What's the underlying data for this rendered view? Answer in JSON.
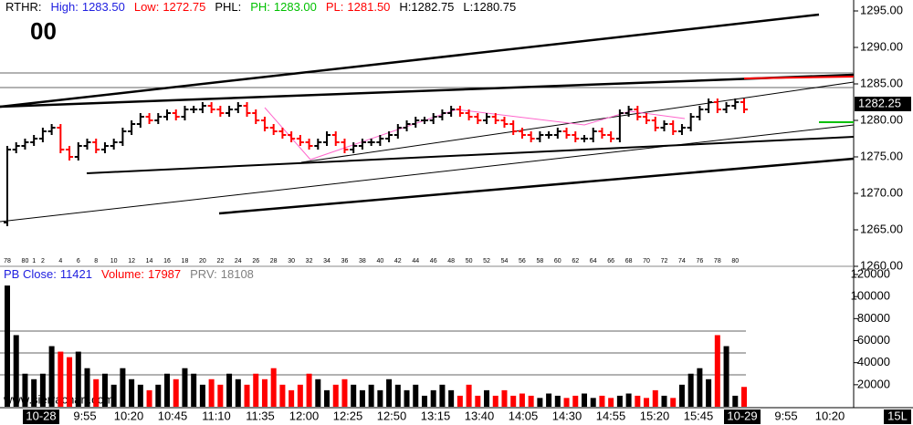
{
  "header": {
    "items": [
      {
        "text": "RTHR:",
        "color": "#000000"
      },
      {
        "text": "High:",
        "color": "#2020e0"
      },
      {
        "text": "1283.50",
        "color": "#2020e0"
      },
      {
        "text": "Low:",
        "color": "#ff0000"
      },
      {
        "text": "1272.75",
        "color": "#ff0000"
      },
      {
        "text": "PHL:",
        "color": "#000000"
      },
      {
        "text": "PH:",
        "color": "#00c000"
      },
      {
        "text": "1283.00",
        "color": "#00c000"
      },
      {
        "text": "PL:",
        "color": "#ff0000"
      },
      {
        "text": "1281.50",
        "color": "#ff0000"
      },
      {
        "text": "H:1282.75",
        "color": "#000000"
      },
      {
        "text": "L:1280.75",
        "color": "#000000"
      }
    ],
    "big_label": "00"
  },
  "volume_header": {
    "items": [
      {
        "text": "PB Close:",
        "color": "#2020e0"
      },
      {
        "text": "11421",
        "color": "#2020e0"
      },
      {
        "text": "Volume:",
        "color": "#ff0000"
      },
      {
        "text": "17987",
        "color": "#ff0000"
      },
      {
        "text": "PRV:",
        "color": "#808080"
      },
      {
        "text": "18108",
        "color": "#808080"
      }
    ]
  },
  "watermark": "www.sierrachart.com",
  "time_axis": {
    "labels": [
      "10-28",
      "9:55",
      "10:20",
      "10:45",
      "11:10",
      "11:35",
      "12:00",
      "12:25",
      "12:50",
      "13:15",
      "13:40",
      "14:05",
      "14:30",
      "14:55",
      "15:20",
      "15:45",
      "10-29",
      "9:55",
      "10:20"
    ],
    "boxed": [
      "10-28",
      "10-29"
    ],
    "corner": "15L"
  },
  "chart_data": [
    {
      "type": "ohlc",
      "up_color": "#000000",
      "down_color": "#ff0000",
      "categories": [
        "78",
        null,
        "80",
        "1",
        "2",
        null,
        "4",
        null,
        "6",
        null,
        "8",
        null,
        "10",
        null,
        "12",
        null,
        "14",
        null,
        "16",
        null,
        "18",
        null,
        "20",
        null,
        "22",
        null,
        "24",
        null,
        "26",
        null,
        "28",
        null,
        "30",
        null,
        "32",
        null,
        "34",
        null,
        "36",
        null,
        "38",
        null,
        "40",
        null,
        "42",
        null,
        "44",
        null,
        "46",
        null,
        "48",
        null,
        "50",
        null,
        "52",
        null,
        "54",
        null,
        "56",
        null,
        "58",
        null,
        "60",
        null,
        "62",
        null,
        "64",
        null,
        "66",
        null,
        "68",
        null,
        "70",
        null,
        "72",
        null,
        "74",
        null,
        "76",
        null,
        "78",
        null,
        "80",
        null
      ],
      "open": [
        1266,
        1276,
        1276.5,
        1277,
        1277.5,
        1278.5,
        1279,
        1276,
        1275,
        1276.5,
        1277,
        1276,
        1276.5,
        1277,
        1278.5,
        1279.5,
        1280.5,
        1280,
        1280.5,
        1281,
        1280.5,
        1281.5,
        1281.5,
        1282,
        1281.5,
        1281,
        1281.5,
        1282,
        1281,
        1280,
        1279,
        1278.5,
        1278,
        1277.5,
        1277,
        1276.5,
        1277,
        1278,
        1277,
        1276,
        1276.5,
        1277,
        1277,
        1277.5,
        1278,
        1279,
        1279.5,
        1280,
        1280,
        1280.5,
        1281,
        1281.5,
        1281,
        1280.5,
        1280,
        1280.5,
        1280,
        1279.5,
        1278.5,
        1278,
        1277.5,
        1278,
        1278,
        1278.5,
        1278,
        1277.5,
        1277.5,
        1278.5,
        1278,
        1277.5,
        1281,
        1281.5,
        1280.5,
        1280,
        1279,
        1279.5,
        1278.5,
        1279,
        1280.5,
        1281.5,
        1282.5,
        1281.5,
        1282,
        1282.5
      ],
      "high": [
        1276.5,
        1277,
        1277.5,
        1278,
        1279,
        1279.5,
        1279.5,
        1276.5,
        1277,
        1277.5,
        1277.5,
        1277,
        1277.5,
        1279,
        1280,
        1281,
        1281,
        1281,
        1281.5,
        1281.5,
        1282,
        1282,
        1282.5,
        1282.5,
        1282,
        1282,
        1282.5,
        1282.5,
        1281.5,
        1280.5,
        1279.5,
        1279,
        1278.5,
        1278,
        1277.5,
        1277.5,
        1278.5,
        1278.5,
        1277.5,
        1277,
        1277.5,
        1277.5,
        1278,
        1278.5,
        1279.5,
        1280,
        1280.5,
        1280.5,
        1281,
        1281.5,
        1282,
        1282,
        1281.5,
        1281,
        1281,
        1281,
        1280.5,
        1280,
        1279,
        1278.5,
        1278.5,
        1278.5,
        1279,
        1279,
        1278.5,
        1278,
        1279,
        1279,
        1278.5,
        1281.5,
        1282,
        1282,
        1281,
        1280.5,
        1280,
        1280,
        1279.5,
        1281,
        1282,
        1283,
        1283,
        1282.5,
        1283,
        1283
      ],
      "low": [
        1265.5,
        1275.5,
        1276,
        1276.5,
        1277,
        1278,
        1275.5,
        1274.5,
        1274.5,
        1276,
        1275.5,
        1275.5,
        1276,
        1276.5,
        1278,
        1279,
        1279.5,
        1279.5,
        1280,
        1280,
        1280,
        1281,
        1281,
        1281,
        1280.5,
        1280.5,
        1281,
        1280.5,
        1279.5,
        1278.5,
        1278,
        1277.5,
        1277,
        1276.5,
        1276,
        1276,
        1276.5,
        1276.5,
        1275.5,
        1275.5,
        1276,
        1276.5,
        1276.5,
        1277,
        1277.5,
        1278.5,
        1279,
        1279.5,
        1279.5,
        1280,
        1280.5,
        1280.5,
        1280,
        1279.5,
        1279.5,
        1279.5,
        1279,
        1278,
        1277.5,
        1277,
        1277,
        1277.5,
        1277.5,
        1277.5,
        1277,
        1277,
        1277,
        1277.5,
        1277,
        1277,
        1280.5,
        1280,
        1279.5,
        1278.5,
        1278.5,
        1278,
        1278,
        1278.5,
        1280,
        1281,
        1281,
        1281,
        1281.5,
        1281
      ],
      "close": [
        1276,
        1276.5,
        1277,
        1277.5,
        1278.5,
        1279,
        1276,
        1275,
        1276.5,
        1277,
        1276,
        1276.5,
        1277,
        1278.5,
        1279.5,
        1280.5,
        1280,
        1280.5,
        1281,
        1280.5,
        1281.5,
        1281.5,
        1282,
        1281.5,
        1281,
        1281.5,
        1282,
        1281,
        1280,
        1279,
        1278.5,
        1278,
        1277.5,
        1277,
        1276.5,
        1277,
        1278,
        1277,
        1276,
        1276.5,
        1277,
        1277,
        1277.5,
        1278,
        1279,
        1279.5,
        1280,
        1280,
        1280.5,
        1281,
        1281.5,
        1281,
        1280.5,
        1280,
        1280.5,
        1280,
        1279.5,
        1278.5,
        1278,
        1277.5,
        1278,
        1278,
        1278.5,
        1278,
        1277.5,
        1277.5,
        1278.5,
        1278,
        1277.5,
        1281,
        1281.5,
        1280.5,
        1280,
        1279,
        1279.5,
        1278.5,
        1279,
        1280.5,
        1281.5,
        1282.5,
        1281.5,
        1282,
        1282.5,
        1281.5
      ],
      "last_price": 1282.25,
      "ylim": [
        1260,
        1296.5
      ],
      "yticks": [
        {
          "value": 1295,
          "label": "1295.00"
        },
        {
          "value": 1290,
          "label": "1290.00"
        },
        {
          "value": 1285,
          "label": "1285.00"
        },
        {
          "value": 1280,
          "label": "1280.00"
        },
        {
          "value": 1275,
          "label": "1275.00"
        },
        {
          "value": 1270,
          "label": "1270.00"
        },
        {
          "value": 1265,
          "label": "1265.00"
        },
        {
          "value": 1260,
          "label": "1260.00"
        }
      ]
    },
    {
      "type": "bar",
      "values": [
        110000,
        65000,
        30000,
        25000,
        30000,
        55000,
        50000,
        45000,
        50000,
        35000,
        25000,
        30000,
        20000,
        35000,
        25000,
        20000,
        15000,
        20000,
        30000,
        25000,
        35000,
        30000,
        20000,
        25000,
        20000,
        30000,
        25000,
        20000,
        30000,
        25000,
        35000,
        20000,
        15000,
        20000,
        30000,
        25000,
        15000,
        20000,
        25000,
        20000,
        15000,
        20000,
        15000,
        25000,
        20000,
        15000,
        20000,
        10000,
        15000,
        20000,
        15000,
        10000,
        20000,
        10000,
        15000,
        10000,
        15000,
        10000,
        12000,
        10000,
        8000,
        12000,
        10000,
        8000,
        10000,
        12000,
        8000,
        10000,
        8000,
        10000,
        12000,
        10000,
        8000,
        15000,
        10000,
        8000,
        20000,
        30000,
        35000,
        25000,
        65000,
        55000,
        10000,
        18000
      ],
      "ylim": [
        0,
        120000
      ],
      "yticks": [
        20000,
        40000,
        60000,
        80000,
        100000,
        120000
      ]
    }
  ]
}
